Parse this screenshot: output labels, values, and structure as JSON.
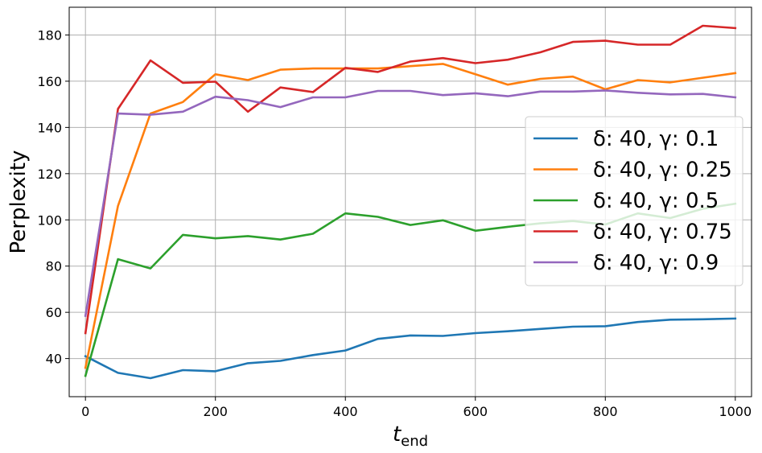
{
  "chart_data": {
    "type": "line",
    "title": "",
    "xlabel": "t",
    "xlabel_sub": "end",
    "ylabel": "Perplexity",
    "xlim": [
      -25,
      1025
    ],
    "ylim": [
      23.5,
      192
    ],
    "xticks": [
      0,
      200,
      400,
      600,
      800,
      1000
    ],
    "yticks": [
      40,
      60,
      80,
      100,
      120,
      140,
      160,
      180
    ],
    "grid": true,
    "legend_position": "center-right",
    "x": [
      0,
      50,
      100,
      150,
      200,
      250,
      300,
      350,
      400,
      450,
      500,
      550,
      600,
      650,
      700,
      750,
      800,
      850,
      900,
      950,
      1000
    ],
    "series": [
      {
        "name": "δ: 40, γ: 0.1",
        "color": "#1f77b4",
        "values": [
          41.0,
          33.8,
          31.5,
          35.0,
          34.5,
          38.0,
          39.0,
          41.5,
          43.5,
          48.5,
          50.0,
          49.8,
          51.0,
          51.8,
          52.8,
          53.8,
          54.0,
          55.8,
          56.8,
          57.0,
          57.3
        ]
      },
      {
        "name": "δ: 40, γ: 0.25",
        "color": "#ff7f0e",
        "values": [
          36.0,
          106.0,
          146.0,
          151.0,
          163.0,
          160.5,
          165.0,
          165.5,
          165.5,
          165.5,
          166.5,
          167.5,
          163.0,
          158.5,
          161.0,
          162.0,
          156.5,
          160.5,
          159.5,
          161.5,
          163.5
        ]
      },
      {
        "name": "δ: 40, γ: 0.5",
        "color": "#2ca02c",
        "values": [
          32.5,
          83.0,
          79.0,
          93.5,
          92.0,
          93.0,
          91.5,
          94.0,
          102.8,
          101.3,
          97.8,
          99.8,
          95.3,
          97.0,
          98.5,
          99.5,
          98.0,
          102.8,
          100.8,
          104.8,
          107.0
        ]
      },
      {
        "name": "δ: 40, γ: 0.75",
        "color": "#d62728",
        "values": [
          51.0,
          148.0,
          169.0,
          159.3,
          159.8,
          146.8,
          157.3,
          155.3,
          165.8,
          164.0,
          168.5,
          170.0,
          167.8,
          169.3,
          172.5,
          177.0,
          177.5,
          175.8,
          175.8,
          184.0,
          183.0
        ]
      },
      {
        "name": "δ: 40, γ: 0.9",
        "color": "#9467bd",
        "values": [
          58.5,
          146.0,
          145.5,
          146.8,
          153.3,
          151.8,
          148.8,
          153.0,
          153.0,
          155.8,
          155.8,
          154.0,
          154.8,
          153.5,
          155.5,
          155.5,
          156.0,
          155.0,
          154.3,
          154.5,
          153.0
        ]
      }
    ]
  }
}
